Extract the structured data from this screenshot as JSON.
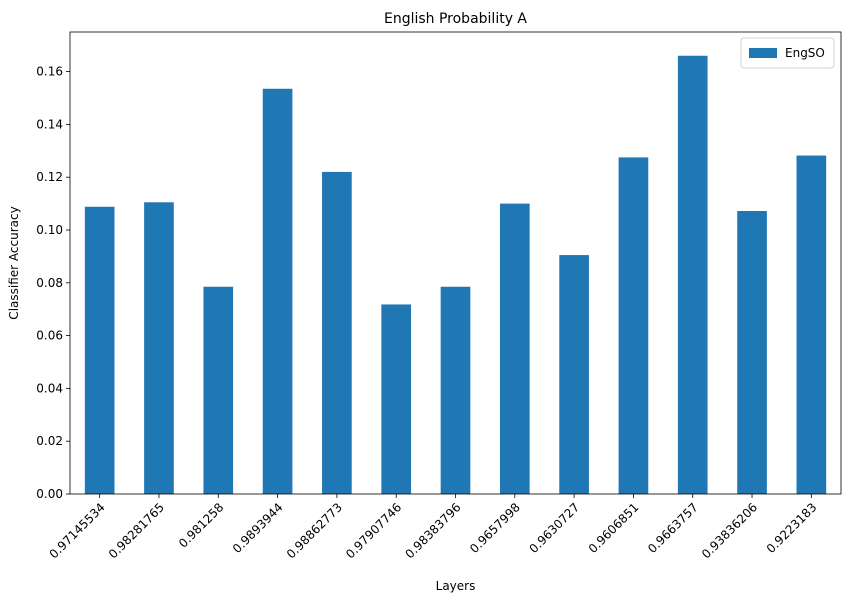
{
  "chart_data": {
    "type": "bar",
    "title": "English Probability A",
    "xlabel": "Layers",
    "ylabel": "Classifier Accuracy",
    "categories": [
      "0.97145534",
      "0.98281765",
      "0.981258",
      "0.9893944",
      "0.98862773",
      "0.97907746",
      "0.98383796",
      "0.9657998",
      "0.9630727",
      "0.9606851",
      "0.9663757",
      "0.93836206",
      "0.9223183"
    ],
    "series": [
      {
        "name": "EngSO",
        "color": "#1f77b4",
        "values": [
          0.1088,
          0.1105,
          0.0785,
          0.1535,
          0.122,
          0.0718,
          0.0785,
          0.11,
          0.0905,
          0.1275,
          0.166,
          0.1072,
          0.1282
        ]
      }
    ],
    "ylim": [
      0,
      0.175
    ],
    "yticks": [
      "0.00",
      "0.02",
      "0.04",
      "0.06",
      "0.08",
      "0.10",
      "0.12",
      "0.14",
      "0.16"
    ],
    "ytick_values": [
      0,
      0.02,
      0.04,
      0.06,
      0.08,
      0.1,
      0.12,
      0.14,
      0.16
    ],
    "grid": false,
    "legend_position": "top-right"
  }
}
